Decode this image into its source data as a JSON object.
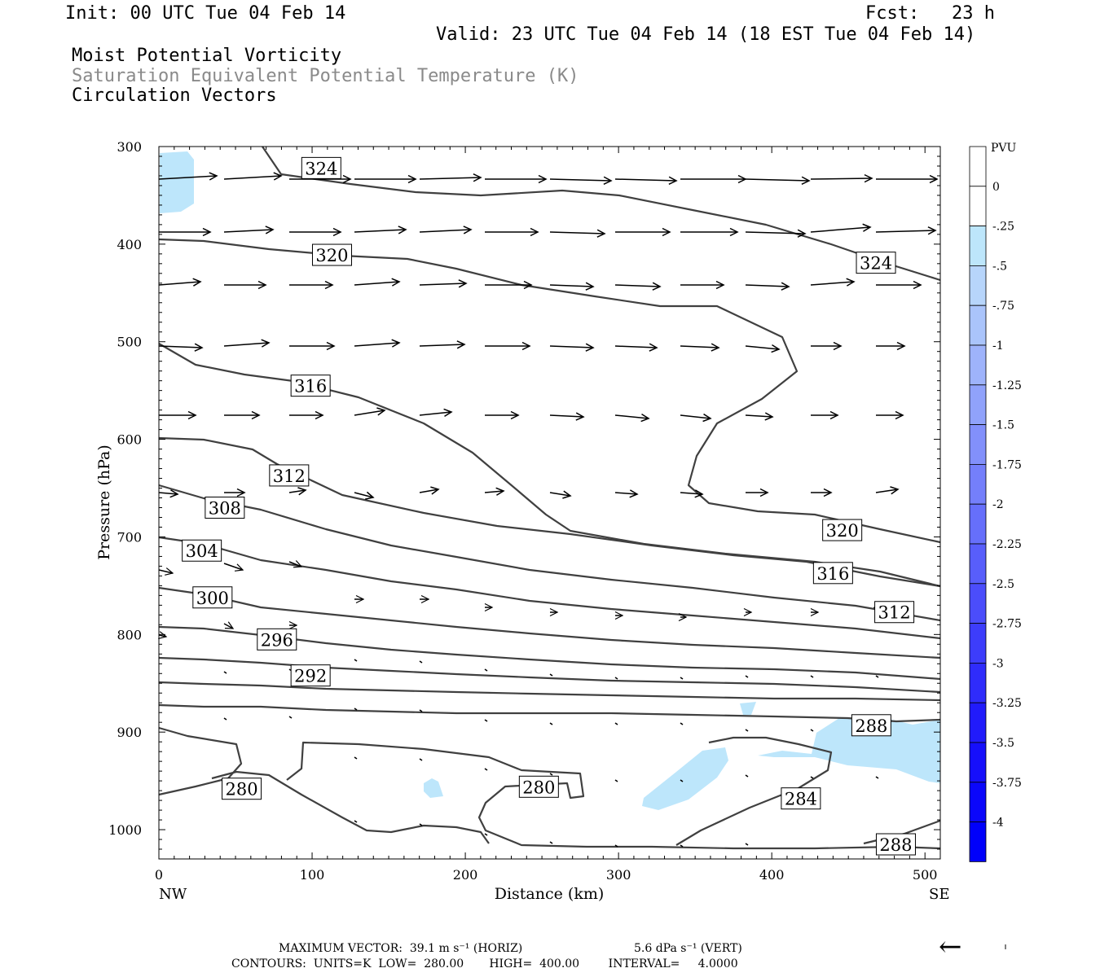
{
  "header": {
    "init": "Init: 00 UTC Tue 04 Feb 14",
    "fcst_label": "Fcst:",
    "fcst_value": "23 h",
    "valid": "Valid: 23 UTC Tue 04 Feb 14 (18 EST Tue 04 Feb 14)",
    "field1": "Moist Potential Vorticity",
    "field2": "Saturation Equivalent Potential Temperature (K)",
    "field3": "Circulation Vectors"
  },
  "footer": {
    "max_vector": "MAXIMUM VECTOR:  39.1 m s⁻¹ (HORIZ)",
    "max_vector_vert": "5.6 dPa s⁻¹ (VERT)",
    "contours": "CONTOURS:  UNITS=K  LOW=  280.00       HIGH=  400.00        INTERVAL=     4.0000"
  },
  "chart_data": {
    "type": "cross-section",
    "xlabel": "Distance (km)",
    "ylabel": "Pressure (hPa)",
    "xlim": [
      0,
      510
    ],
    "ylim": [
      1030,
      300
    ],
    "x_ticks": [
      0,
      100,
      200,
      300,
      400,
      500
    ],
    "y_ticks": [
      300,
      400,
      500,
      600,
      700,
      800,
      900,
      1000
    ],
    "x_end_labels": {
      "left": "NW",
      "right": "SE"
    },
    "colorbar": {
      "title": "PVU",
      "levels": [
        "0",
        "-.25",
        "-.5",
        "-.75",
        "-1",
        "-1.25",
        "-1.5",
        "-1.75",
        "-2",
        "-2.25",
        "-2.5",
        "-2.75",
        "-3",
        "-3.25",
        "-3.5",
        "-3.75",
        "-4"
      ],
      "colors": [
        "#ffffff",
        "#bde6fb",
        "#b7d5fb",
        "#aac4fb",
        "#9eb3fb",
        "#90a2fb",
        "#8290fb",
        "#747ffb",
        "#666ffb",
        "#585efb",
        "#4b4dfb",
        "#3d3dfb",
        "#2f2cfb",
        "#211bfb",
        "#160ffb",
        "#0b07fb",
        "#0000fb"
      ]
    },
    "contour_labels": [
      {
        "text": "324",
        "x": 106,
        "p": 322
      },
      {
        "text": "324",
        "x": 468,
        "p": 419
      },
      {
        "text": "320",
        "x": 113,
        "p": 411
      },
      {
        "text": "320",
        "x": 446,
        "p": 693
      },
      {
        "text": "316",
        "x": 99,
        "p": 545
      },
      {
        "text": "316",
        "x": 440,
        "p": 737
      },
      {
        "text": "312",
        "x": 85,
        "p": 637
      },
      {
        "text": "312",
        "x": 480,
        "p": 777
      },
      {
        "text": "308",
        "x": 43,
        "p": 670
      },
      {
        "text": "304",
        "x": 28,
        "p": 714
      },
      {
        "text": "300",
        "x": 35,
        "p": 762
      },
      {
        "text": "296",
        "x": 77,
        "p": 805
      },
      {
        "text": "292",
        "x": 99,
        "p": 842
      },
      {
        "text": "288",
        "x": 465,
        "p": 893
      },
      {
        "text": "288",
        "x": 481,
        "p": 1015
      },
      {
        "text": "284",
        "x": 419,
        "p": 968
      },
      {
        "text": "280",
        "x": 54,
        "p": 958
      },
      {
        "text": "280",
        "x": 248,
        "p": 956
      }
    ],
    "max_vector_arrow": "←"
  }
}
